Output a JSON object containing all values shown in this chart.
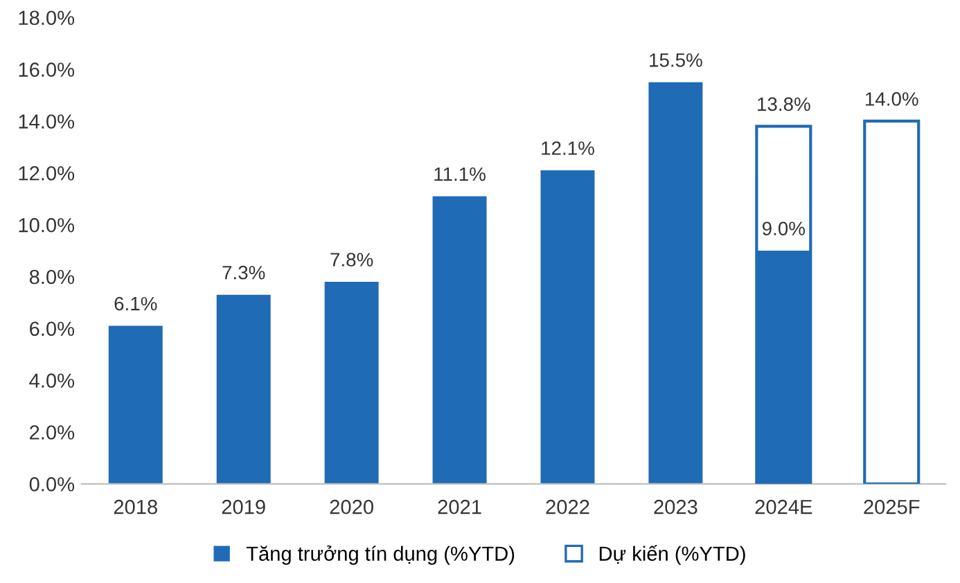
{
  "chart_data": {
    "type": "bar",
    "categories": [
      "2018",
      "2019",
      "2020",
      "2021",
      "2022",
      "2023",
      "2024E",
      "2025F"
    ],
    "series": [
      {
        "name": "Tăng trưởng tín dụng (%YTD)",
        "color": "#1f6bb5",
        "values": [
          6.1,
          7.3,
          7.8,
          11.1,
          12.1,
          15.5,
          9.0,
          null
        ],
        "value_labels": [
          "6.1%",
          "7.3%",
          "7.8%",
          "11.1%",
          "12.1%",
          "15.5%",
          "9.0%",
          null
        ]
      },
      {
        "name": "Dự kiến (%YTD)",
        "color": "#1f6bb5",
        "values": [
          null,
          null,
          null,
          null,
          null,
          null,
          13.8,
          14.0
        ],
        "value_labels": [
          null,
          null,
          null,
          null,
          null,
          null,
          "13.8%",
          "14.0%"
        ]
      }
    ],
    "ylim": [
      0,
      18
    ],
    "yticks": [
      {
        "value": 0,
        "label": "0.0%"
      },
      {
        "value": 2,
        "label": "2.0%"
      },
      {
        "value": 4,
        "label": "4.0%"
      },
      {
        "value": 6,
        "label": "6.0%"
      },
      {
        "value": 8,
        "label": "8.0%"
      },
      {
        "value": 10,
        "label": "10.0%"
      },
      {
        "value": 12,
        "label": "12.0%"
      },
      {
        "value": 14,
        "label": "14.0%"
      },
      {
        "value": 16,
        "label": "16.0%"
      },
      {
        "value": 18,
        "label": "18.0%"
      }
    ],
    "grid": false,
    "legend": "bottom"
  }
}
